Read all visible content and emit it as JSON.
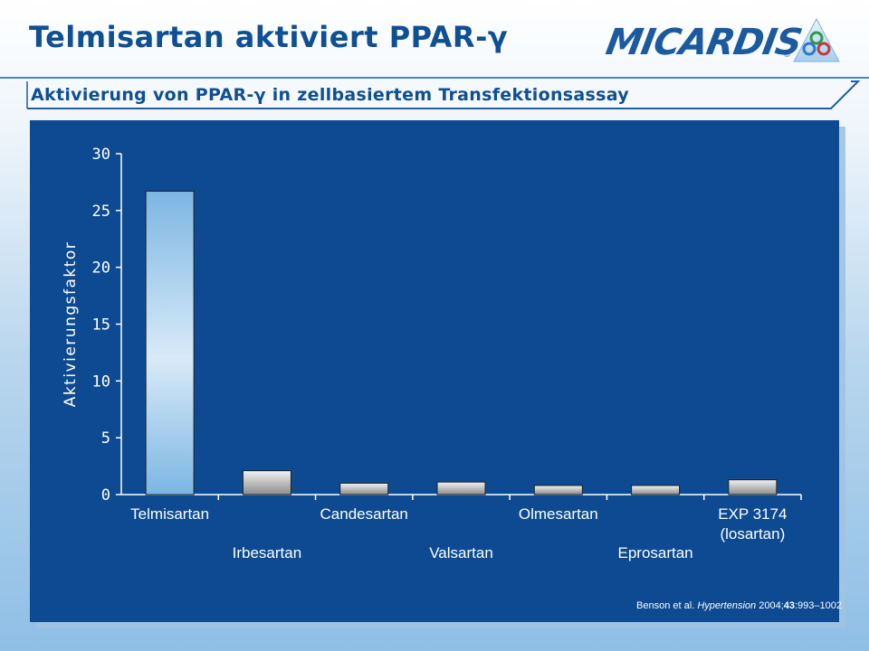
{
  "slide": {
    "title": "Telmisartan aktiviert PPAR-γ",
    "subtitle": "Aktivierung von PPAR-γ in zellbasiertem Transfektionsassay",
    "logo_text": "MICARDIS",
    "logo_registered": "®"
  },
  "citation": {
    "authors": "Benson et al.",
    "journal": "Hypertension",
    "year": "2004;",
    "volume": "43",
    "pages": ":993–1002"
  },
  "colors": {
    "title": "#0f4f94",
    "panel": "#0d4a92",
    "banner": "#f6f9fc"
  },
  "chart_data": {
    "type": "bar",
    "ylabel": "Aktivierungsfaktor",
    "xlabel": "",
    "ylim": [
      0,
      30
    ],
    "yticks": [
      0,
      5,
      10,
      15,
      20,
      25,
      30
    ],
    "grid": false,
    "categories": [
      "Telmisartan",
      "Irbesartan",
      "Candesartan",
      "Valsartan",
      "Olmesartan",
      "Eprosartan",
      "EXP 3174 (losartan)"
    ],
    "category_label_lines": [
      [
        "Telmisartan"
      ],
      [
        "Irbesartan"
      ],
      [
        "Candesartan"
      ],
      [
        "Valsartan"
      ],
      [
        "Olmesartan"
      ],
      [
        "Eprosartan"
      ],
      [
        "EXP 3174",
        "(losartan)"
      ]
    ],
    "values": [
      26.7,
      2.1,
      1.0,
      1.1,
      0.8,
      0.8,
      1.3
    ],
    "bar_colors": [
      "light-blue-gradient",
      "gray-gradient",
      "gray-gradient",
      "gray-gradient",
      "gray-gradient",
      "gray-gradient",
      "gray-gradient"
    ]
  }
}
